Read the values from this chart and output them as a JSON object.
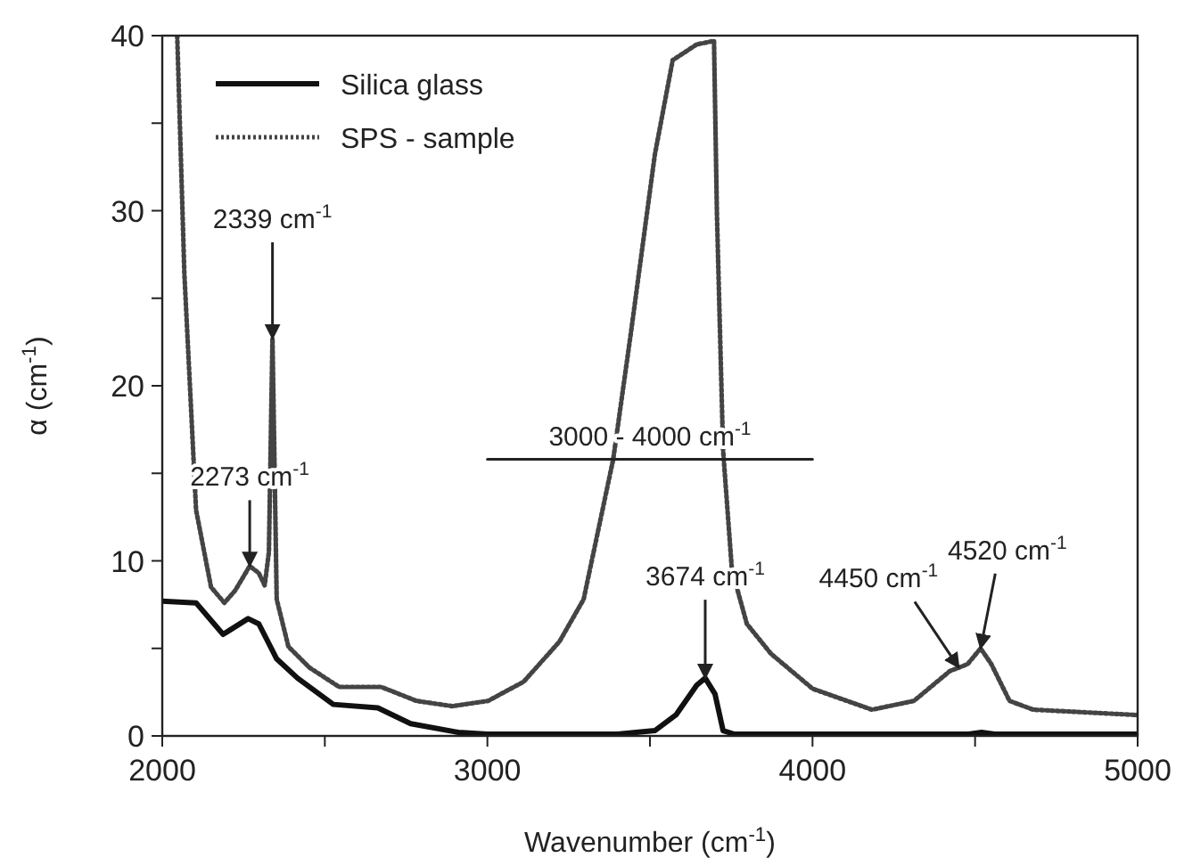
{
  "chart_data": {
    "type": "line",
    "xlabel": "Wavenumber (cm$^{-1}$)",
    "ylabel": "α (cm$^{-1}$)",
    "xlim": [
      2000,
      5000
    ],
    "xticks": [
      2000,
      {
        "value": 2500,
        "label": null
      },
      3000,
      {
        "value": 3500,
        "label": null
      },
      4000,
      {
        "value": 4500,
        "label": null
      },
      5000
    ],
    "ylim": [
      0,
      40
    ],
    "yticks": [
      0,
      {
        "value": 5,
        "label": null
      },
      10,
      {
        "value": 15,
        "label": null
      },
      20,
      {
        "value": 25,
        "label": null
      },
      30,
      {
        "value": 35,
        "label": null
      },
      40
    ],
    "legend": "top left",
    "grid": false,
    "series": [
      {
        "name": "Silica glass",
        "color": "#111111",
        "line_style": "solid",
        "x": [
          2000,
          2104,
          2187,
          2264,
          2297,
          2352,
          2416,
          2526,
          2663,
          2764,
          2911,
          3000,
          3200,
          3400,
          3515,
          3580,
          3644,
          3670,
          3700,
          3725,
          3760,
          3900,
          4200,
          4480,
          4520,
          4560,
          4800,
          5000
        ],
        "values": [
          7.7,
          7.6,
          5.8,
          6.7,
          6.4,
          4.4,
          3.3,
          1.8,
          1.6,
          0.7,
          0.2,
          0.1,
          0.1,
          0.1,
          0.3,
          1.2,
          2.9,
          3.3,
          2.4,
          0.3,
          0.1,
          0.1,
          0.1,
          0.1,
          0.2,
          0.1,
          0.1,
          0.1
        ]
      },
      {
        "name": "SPS - sample",
        "color": "#444444",
        "line_style": "dotted",
        "x": [
          2046,
          2068,
          2104,
          2150,
          2191,
          2224,
          2269,
          2297,
          2315,
          2328,
          2339,
          2352,
          2388,
          2453,
          2544,
          2673,
          2782,
          2892,
          3002,
          3112,
          3222,
          3296,
          3387,
          3442,
          3515,
          3570,
          3644,
          3697,
          3706,
          3725,
          3752,
          3798,
          3872,
          4000,
          4183,
          4312,
          4422,
          4477,
          4517,
          4550,
          4606,
          4679,
          4991,
          5000
        ],
        "values": [
          40,
          26.4,
          12.9,
          8.5,
          7.6,
          8.3,
          9.7,
          9.3,
          8.6,
          10.5,
          22.7,
          7.8,
          5.1,
          3.9,
          2.8,
          2.8,
          2.0,
          1.7,
          2.0,
          3.1,
          5.4,
          7.8,
          15.8,
          23.1,
          33.2,
          38.6,
          39.5,
          39.7,
          29.8,
          16.3,
          9.5,
          6.4,
          4.7,
          2.7,
          1.5,
          2.0,
          3.7,
          4.1,
          5.0,
          4.1,
          2.0,
          1.5,
          1.2,
          1.2
        ]
      },
      {
        "type": "line",
        "color": "#222222",
        "line_style": "solid",
        "x": [
          3000,
          4000
        ],
        "values": [
          15.8,
          15.8
        ]
      }
    ],
    "annotations": [
      {
        "text": "2339 cm$^{-1}$",
        "x": 2339,
        "y": 22.7
      },
      {
        "text": "2273 cm$^{-1}$",
        "x": 2269,
        "y": 9.7
      },
      {
        "text": "3000 - 4000 cm$^{-1}$",
        "x": 3500,
        "y": 15.8
      },
      {
        "text": "3674 cm$^{-1}$",
        "x": 3670,
        "y": 3.3
      },
      {
        "text": "4450 cm$^{-1}$",
        "x": 4450,
        "y": 3.9
      },
      {
        "text": "4520 cm$^{-1}$",
        "x": 4517,
        "y": 5.0
      }
    ]
  }
}
